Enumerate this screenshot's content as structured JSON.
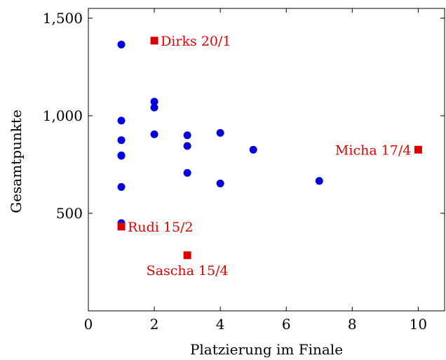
{
  "chart_data": {
    "type": "scatter",
    "title": "",
    "xlabel": "Platzierung im Finale",
    "ylabel": "Gesamtpunkte",
    "xlim": [
      0,
      10.8
    ],
    "ylim": [
      0,
      1550
    ],
    "xticks": [
      0,
      2,
      4,
      6,
      8,
      10
    ],
    "xtick_labels": [
      "0",
      "2",
      "4",
      "6",
      "8",
      "10"
    ],
    "yticks": [
      500,
      1000,
      1500
    ],
    "ytick_labels": [
      "500",
      "1,000",
      "1,500"
    ],
    "grid": false,
    "legend": "none",
    "series": [
      {
        "marker": "circle",
        "color": "#0000dd",
        "points": [
          {
            "x": 1,
            "y": 1365
          },
          {
            "x": 1,
            "y": 975
          },
          {
            "x": 1,
            "y": 875
          },
          {
            "x": 1,
            "y": 797
          },
          {
            "x": 1,
            "y": 795
          },
          {
            "x": 1,
            "y": 635
          },
          {
            "x": 1,
            "y": 450
          },
          {
            "x": 2,
            "y": 1072
          },
          {
            "x": 2,
            "y": 1042
          },
          {
            "x": 2,
            "y": 905
          },
          {
            "x": 3,
            "y": 900
          },
          {
            "x": 3,
            "y": 845
          },
          {
            "x": 3,
            "y": 707
          },
          {
            "x": 4,
            "y": 912
          },
          {
            "x": 4,
            "y": 653
          },
          {
            "x": 5,
            "y": 826
          },
          {
            "x": 7,
            "y": 666
          }
        ]
      },
      {
        "marker": "square",
        "color": "#dd0000",
        "points": [
          {
            "x": 2,
            "y": 1385,
            "label": "Dirks 20/1",
            "label_pos": "right"
          },
          {
            "x": 10,
            "y": 826,
            "label": "Micha 17/4",
            "label_pos": "left"
          },
          {
            "x": 1,
            "y": 432,
            "label": "Rudi 15/2",
            "label_pos": "right"
          },
          {
            "x": 3,
            "y": 285,
            "label": "Sascha 15/4",
            "label_pos": "below"
          }
        ]
      }
    ]
  }
}
